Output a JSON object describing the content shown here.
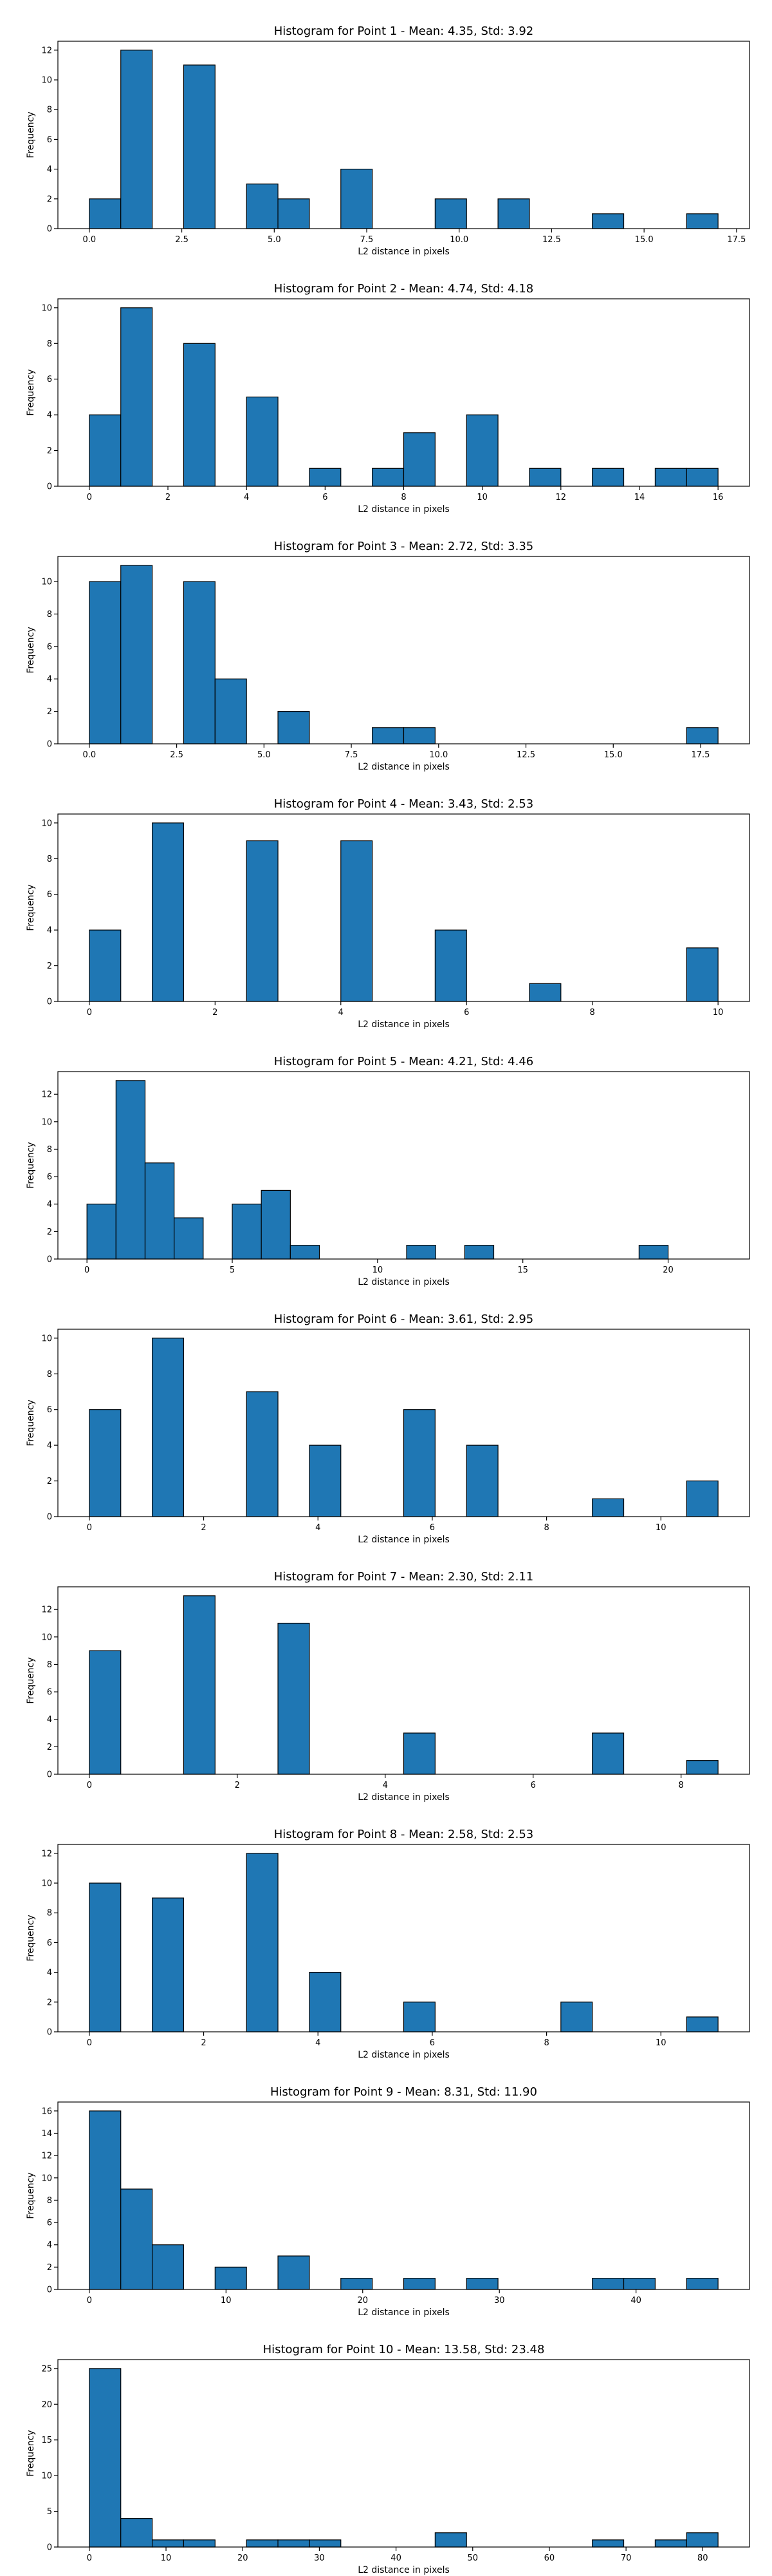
{
  "chart_data": [
    {
      "type": "bar",
      "title": "Histogram for Point 1 - Mean: 4.35, Std: 3.92",
      "xlabel": "L2 distance in pixels",
      "ylabel": "Frequency",
      "bin_width": 0.85,
      "xlim": [
        -0.85,
        17.85
      ],
      "ylim": [
        0,
        12.6
      ],
      "xticks": [
        0.0,
        2.5,
        5.0,
        7.5,
        10.0,
        12.5,
        15.0,
        17.5
      ],
      "xtick_labels": [
        "0.0",
        "2.5",
        "5.0",
        "7.5",
        "10.0",
        "12.5",
        "15.0",
        "17.5"
      ],
      "yticks": [
        0,
        2,
        4,
        6,
        8,
        10,
        12
      ],
      "bars": [
        {
          "x": 0.0,
          "value": 2
        },
        {
          "x": 0.85,
          "value": 12
        },
        {
          "x": 2.55,
          "value": 11
        },
        {
          "x": 4.25,
          "value": 3
        },
        {
          "x": 5.1,
          "value": 2
        },
        {
          "x": 6.8,
          "value": 4
        },
        {
          "x": 9.35,
          "value": 2
        },
        {
          "x": 11.05,
          "value": 2
        },
        {
          "x": 13.6,
          "value": 1
        },
        {
          "x": 16.15,
          "value": 1
        }
      ]
    },
    {
      "type": "bar",
      "title": "Histogram for Point 2 - Mean: 4.74, Std: 4.18",
      "xlabel": "L2 distance in pixels",
      "ylabel": "Frequency",
      "bin_width": 0.8,
      "xlim": [
        -0.8,
        16.8
      ],
      "ylim": [
        0,
        10.5
      ],
      "xticks": [
        0,
        2,
        4,
        6,
        8,
        10,
        12,
        14,
        16
      ],
      "xtick_labels": [
        "0",
        "2",
        "4",
        "6",
        "8",
        "10",
        "12",
        "14",
        "16"
      ],
      "yticks": [
        0,
        2,
        4,
        6,
        8,
        10
      ],
      "bars": [
        {
          "x": 0.0,
          "value": 4
        },
        {
          "x": 0.8,
          "value": 10
        },
        {
          "x": 2.4,
          "value": 8
        },
        {
          "x": 4.0,
          "value": 5
        },
        {
          "x": 5.6,
          "value": 1
        },
        {
          "x": 7.2,
          "value": 1
        },
        {
          "x": 8.0,
          "value": 3
        },
        {
          "x": 9.6,
          "value": 4
        },
        {
          "x": 11.2,
          "value": 1
        },
        {
          "x": 12.8,
          "value": 1
        },
        {
          "x": 14.4,
          "value": 1
        },
        {
          "x": 15.2,
          "value": 1
        }
      ]
    },
    {
      "type": "bar",
      "title": "Histogram for Point 3 - Mean: 2.72, Std: 3.35",
      "xlabel": "L2 distance in pixels",
      "ylabel": "Frequency",
      "bin_width": 0.9,
      "xlim": [
        -0.9,
        18.9
      ],
      "ylim": [
        0,
        11.55
      ],
      "xticks": [
        0.0,
        2.5,
        5.0,
        7.5,
        10.0,
        12.5,
        15.0,
        17.5
      ],
      "xtick_labels": [
        "0.0",
        "2.5",
        "5.0",
        "7.5",
        "10.0",
        "12.5",
        "15.0",
        "17.5"
      ],
      "yticks": [
        0,
        2,
        4,
        6,
        8,
        10
      ],
      "bars": [
        {
          "x": 0.0,
          "value": 10
        },
        {
          "x": 0.9,
          "value": 11
        },
        {
          "x": 2.7,
          "value": 10
        },
        {
          "x": 3.6,
          "value": 4
        },
        {
          "x": 5.4,
          "value": 2
        },
        {
          "x": 8.1,
          "value": 1
        },
        {
          "x": 9.0,
          "value": 1
        },
        {
          "x": 17.1,
          "value": 1
        }
      ]
    },
    {
      "type": "bar",
      "title": "Histogram for Point 4 - Mean: 3.43, Std: 2.53",
      "xlabel": "L2 distance in pixels",
      "ylabel": "Frequency",
      "bin_width": 0.5,
      "xlim": [
        -0.5,
        10.5
      ],
      "ylim": [
        0,
        10.5
      ],
      "xticks": [
        0,
        2,
        4,
        6,
        8,
        10
      ],
      "xtick_labels": [
        "0",
        "2",
        "4",
        "6",
        "8",
        "10"
      ],
      "yticks": [
        0,
        2,
        4,
        6,
        8,
        10
      ],
      "bars": [
        {
          "x": 0.0,
          "value": 4
        },
        {
          "x": 1.0,
          "value": 10
        },
        {
          "x": 2.5,
          "value": 9
        },
        {
          "x": 4.0,
          "value": 9
        },
        {
          "x": 5.5,
          "value": 4
        },
        {
          "x": 7.0,
          "value": 1
        },
        {
          "x": 9.5,
          "value": 3
        }
      ]
    },
    {
      "type": "bar",
      "title": "Histogram for Point 5 - Mean: 4.21, Std: 4.46",
      "xlabel": "L2 distance in pixels",
      "ylabel": "Frequency",
      "bin_width": 1.0,
      "xlim": [
        -1.0,
        22.8
      ],
      "ylim": [
        0,
        13.65
      ],
      "xticks": [
        0,
        5,
        10,
        15,
        20
      ],
      "xtick_labels": [
        "0",
        "5",
        "10",
        "15",
        "20"
      ],
      "yticks": [
        0,
        2,
        4,
        6,
        8,
        10,
        12
      ],
      "bars": [
        {
          "x": 0.0,
          "value": 4
        },
        {
          "x": 1.0,
          "value": 13
        },
        {
          "x": 2.0,
          "value": 7
        },
        {
          "x": 3.0,
          "value": 3
        },
        {
          "x": 5.0,
          "value": 4
        },
        {
          "x": 6.0,
          "value": 5
        },
        {
          "x": 7.0,
          "value": 1
        },
        {
          "x": 11.0,
          "value": 1
        },
        {
          "x": 13.0,
          "value": 1
        },
        {
          "x": 19.0,
          "value": 1
        }
      ]
    },
    {
      "type": "bar",
      "title": "Histogram for Point 6 - Mean: 3.61, Std: 2.95",
      "xlabel": "L2 distance in pixels",
      "ylabel": "Frequency",
      "bin_width": 0.55,
      "xlim": [
        -0.55,
        11.55
      ],
      "ylim": [
        0,
        10.5
      ],
      "xticks": [
        0,
        2,
        4,
        6,
        8,
        10
      ],
      "xtick_labels": [
        "0",
        "2",
        "4",
        "6",
        "8",
        "10"
      ],
      "yticks": [
        0,
        2,
        4,
        6,
        8,
        10
      ],
      "bars": [
        {
          "x": 0.0,
          "value": 6
        },
        {
          "x": 1.1,
          "value": 10
        },
        {
          "x": 2.75,
          "value": 7
        },
        {
          "x": 3.85,
          "value": 4
        },
        {
          "x": 5.5,
          "value": 6
        },
        {
          "x": 6.6,
          "value": 4
        },
        {
          "x": 8.8,
          "value": 1
        },
        {
          "x": 10.45,
          "value": 2
        }
      ]
    },
    {
      "type": "bar",
      "title": "Histogram for Point 7 - Mean: 2.30, Std: 2.11",
      "xlabel": "L2 distance in pixels",
      "ylabel": "Frequency",
      "bin_width": 0.425,
      "xlim": [
        -0.425,
        8.925
      ],
      "ylim": [
        0,
        13.65
      ],
      "xticks": [
        0,
        2,
        4,
        6,
        8
      ],
      "xtick_labels": [
        "0",
        "2",
        "4",
        "6",
        "8"
      ],
      "yticks": [
        0,
        2,
        4,
        6,
        8,
        10,
        12
      ],
      "bars": [
        {
          "x": 0.0,
          "value": 9
        },
        {
          "x": 1.275,
          "value": 13
        },
        {
          "x": 2.55,
          "value": 11
        },
        {
          "x": 4.25,
          "value": 3
        },
        {
          "x": 6.8,
          "value": 3
        },
        {
          "x": 8.075,
          "value": 1
        }
      ]
    },
    {
      "type": "bar",
      "title": "Histogram for Point 8 - Mean: 2.58, Std: 2.53",
      "xlabel": "L2 distance in pixels",
      "ylabel": "Frequency",
      "bin_width": 0.55,
      "xlim": [
        -0.55,
        11.55
      ],
      "ylim": [
        0,
        12.6
      ],
      "xticks": [
        0,
        2,
        4,
        6,
        8,
        10
      ],
      "xtick_labels": [
        "0",
        "2",
        "4",
        "6",
        "8",
        "10"
      ],
      "yticks": [
        0,
        2,
        4,
        6,
        8,
        10,
        12
      ],
      "bars": [
        {
          "x": 0.0,
          "value": 10
        },
        {
          "x": 1.1,
          "value": 9
        },
        {
          "x": 2.75,
          "value": 12
        },
        {
          "x": 3.85,
          "value": 4
        },
        {
          "x": 5.5,
          "value": 2
        },
        {
          "x": 8.25,
          "value": 2
        },
        {
          "x": 10.45,
          "value": 1
        }
      ]
    },
    {
      "type": "bar",
      "title": "Histogram for Point 9 - Mean: 8.31, Std: 11.90",
      "xlabel": "L2 distance in pixels",
      "ylabel": "Frequency",
      "bin_width": 2.3,
      "xlim": [
        -2.3,
        48.3
      ],
      "ylim": [
        0,
        16.8
      ],
      "xticks": [
        0,
        10,
        20,
        30,
        40
      ],
      "xtick_labels": [
        "0",
        "10",
        "20",
        "30",
        "40"
      ],
      "yticks": [
        0,
        2,
        4,
        6,
        8,
        10,
        12,
        14,
        16
      ],
      "bars": [
        {
          "x": 0.0,
          "value": 16
        },
        {
          "x": 2.3,
          "value": 9
        },
        {
          "x": 4.6,
          "value": 4
        },
        {
          "x": 9.2,
          "value": 2
        },
        {
          "x": 13.8,
          "value": 3
        },
        {
          "x": 18.4,
          "value": 1
        },
        {
          "x": 23.0,
          "value": 1
        },
        {
          "x": 27.6,
          "value": 1
        },
        {
          "x": 36.8,
          "value": 1
        },
        {
          "x": 39.1,
          "value": 1
        },
        {
          "x": 43.7,
          "value": 1
        }
      ]
    },
    {
      "type": "bar",
      "title": "Histogram for Point 10 - Mean: 13.58, Std: 23.48",
      "xlabel": "L2 distance in pixels",
      "ylabel": "Frequency",
      "bin_width": 4.1,
      "xlim": [
        -4.1,
        86.1
      ],
      "ylim": [
        0,
        26.25
      ],
      "xticks": [
        0,
        10,
        20,
        30,
        40,
        50,
        60,
        70,
        80
      ],
      "xtick_labels": [
        "0",
        "10",
        "20",
        "30",
        "40",
        "50",
        "60",
        "70",
        "80"
      ],
      "yticks": [
        0,
        5,
        10,
        15,
        20,
        25
      ],
      "bars": [
        {
          "x": 0.0,
          "value": 25
        },
        {
          "x": 4.1,
          "value": 4
        },
        {
          "x": 8.2,
          "value": 1
        },
        {
          "x": 12.3,
          "value": 1
        },
        {
          "x": 20.5,
          "value": 1
        },
        {
          "x": 24.6,
          "value": 1
        },
        {
          "x": 28.7,
          "value": 1
        },
        {
          "x": 45.1,
          "value": 2
        },
        {
          "x": 65.6,
          "value": 1
        },
        {
          "x": 73.8,
          "value": 1
        },
        {
          "x": 77.9,
          "value": 2
        }
      ]
    }
  ]
}
